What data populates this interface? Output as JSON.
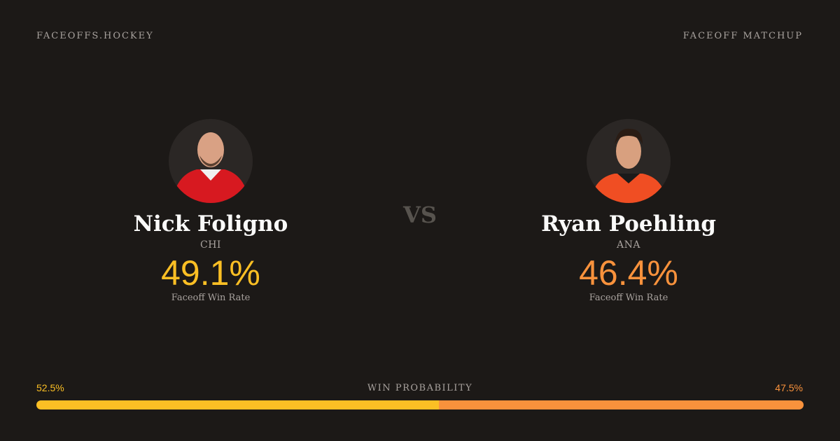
{
  "header": {
    "site": "FACEOFFS.HOCKEY",
    "label": "FACEOFF MATCHUP"
  },
  "players": [
    {
      "name": "Nick Foligno",
      "team": "CHI",
      "win_rate": "49.1%",
      "rate_label": "Faceoff Win Rate"
    },
    {
      "name": "Ryan Poehling",
      "team": "ANA",
      "win_rate": "46.4%",
      "rate_label": "Faceoff Win Rate"
    }
  ],
  "vs": "VS",
  "probability": {
    "label": "WIN PROBABILITY",
    "values": [
      52.5,
      47.5
    ],
    "value_labels": [
      "52.5%",
      "47.5%"
    ],
    "colors": [
      "#fbbf24",
      "#f9923c"
    ]
  }
}
